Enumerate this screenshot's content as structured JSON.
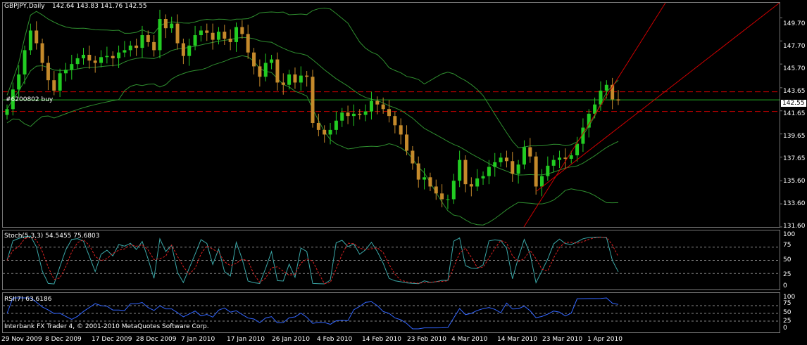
{
  "header": {
    "symbol": "GBPJPY,Daily",
    "ohlc": "142.64 143.83 141.76 142.55"
  },
  "order_label": "#6200802 buy",
  "stoch": {
    "label": "Stoch(5,3,3) 54.5455 75.6803",
    "levels": [
      "100",
      "75",
      "50",
      "25",
      "0"
    ]
  },
  "rsi": {
    "label": "RSI(7) 63.6186",
    "levels": [
      "100",
      "75",
      "50",
      "25",
      "0"
    ]
  },
  "footer": "Interbank FX Trader 4, © 2001-2010 MetaQuotes Software Corp.",
  "colors": {
    "background": "#000000",
    "up_candle": "#22cc22",
    "down_candle": "#c58a2b",
    "bands": "#2f8f2f",
    "trendline": "#cc0000",
    "stoch_main": "#3aa7a7",
    "stoch_signal": "#dd2222",
    "rsi": "#3366ff",
    "grid": "#777777"
  },
  "chart_data": {
    "type": "candlestick",
    "x_ticks": [
      "29 Nov 2009",
      "8 Dec 2009",
      "17 Dec 2009",
      "28 Dec 2009",
      "7 Jan 2010",
      "17 Jan 2010",
      "26 Jan 2010",
      "4 Feb 2010",
      "14 Feb 2010",
      "23 Feb 2010",
      "4 Mar 2010",
      "14 Mar 2010",
      "23 Mar 2010",
      "1 Apr 2010"
    ],
    "y_ticks": [
      "149.70",
      "147.70",
      "145.70",
      "143.65",
      "141.65",
      "139.65",
      "137.65",
      "135.60",
      "133.60",
      "131.60"
    ],
    "ylim": [
      131.6,
      151.0
    ],
    "current_price": "142.55",
    "close_series": [
      141.8,
      143.5,
      144.8,
      146.9,
      148.6,
      147.5,
      145.8,
      144.3,
      143.4,
      144.9,
      145.2,
      145.7,
      146.2,
      146.5,
      146.0,
      145.8,
      146.3,
      146.4,
      146.2,
      146.7,
      146.9,
      147.3,
      147.1,
      148.2,
      147.6,
      146.9,
      149.6,
      148.8,
      149.2,
      147.5,
      146.4,
      147.3,
      148.2,
      148.6,
      148.4,
      147.8,
      148.5,
      147.9,
      147.6,
      148.9,
      148.3,
      146.7,
      145.5,
      144.6,
      145.8,
      146.1,
      144.1,
      143.9,
      144.8,
      144.1,
      144.7,
      144.6,
      140.6,
      140.0,
      139.6,
      140.0,
      140.8,
      141.5,
      141.2,
      141.4,
      141.3,
      141.6,
      142.5,
      142.2,
      141.8,
      141.2,
      140.4,
      139.6,
      138.2,
      137.1,
      135.7,
      135.9,
      135.1,
      134.5,
      134.0,
      134.0,
      135.6,
      137.4,
      135.3,
      135.1,
      135.8,
      136.0,
      136.8,
      137.2,
      137.6,
      137.3,
      136.2,
      137.0,
      138.5,
      137.7,
      135.1,
      136.0,
      136.9,
      137.4,
      137.6,
      137.5,
      137.8,
      138.8,
      140.2,
      141.4,
      142.2,
      143.4,
      143.9,
      142.64,
      142.55
    ],
    "bands": {
      "label": "Bollinger"
    },
    "levels": [
      143.3,
      142.6,
      141.6
    ]
  }
}
